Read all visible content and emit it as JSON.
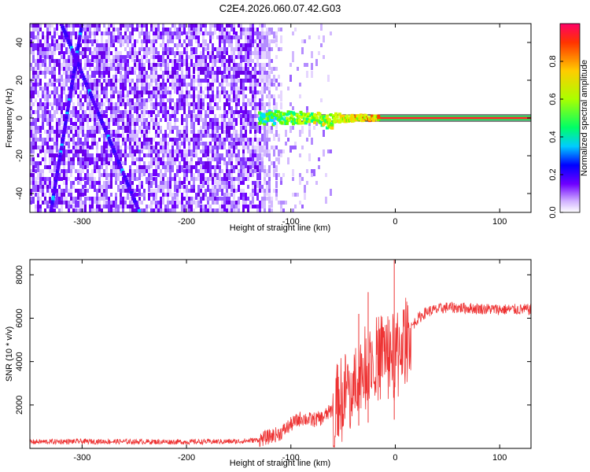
{
  "title": "C2E4.2026.060.07.42.G03",
  "chart_data": [
    {
      "type": "heatmap",
      "xlabel": "Height of straight line (km)",
      "ylabel": "Frequency (Hz)",
      "xlim": [
        -350,
        130
      ],
      "ylim": [
        -50,
        50
      ],
      "x_ticks": [
        -300,
        -200,
        -100,
        0,
        100
      ],
      "y_ticks": [
        -40,
        -20,
        0,
        20,
        40
      ],
      "colorbar": {
        "label": "Normalized spectral amplitude",
        "range": [
          0,
          1
        ],
        "ticks": [
          "0.0",
          "0.2",
          "0.4",
          "0.6",
          "0.8"
        ]
      },
      "features": {
        "carrier_frequency_hz": 0,
        "carrier_onset_km": -130,
        "diagonal_tracks": [
          {
            "x_start": -320,
            "y_start": 50,
            "x_end": -245,
            "y_end": -50
          },
          {
            "x_start": -300,
            "y_start": 50,
            "x_end": -330,
            "y_end": -50
          }
        ]
      }
    },
    {
      "type": "line",
      "xlabel": "Height of straight line (km)",
      "ylabel": "SNR (10 * v/v)",
      "xlim": [
        -350,
        130
      ],
      "ylim": [
        0,
        8700
      ],
      "x_ticks": [
        -300,
        -200,
        -100,
        0,
        100
      ],
      "y_ticks": [
        2000,
        4000,
        6000,
        8000
      ],
      "series": [
        {
          "color": "#ee3333",
          "x": [
            -350,
            -300,
            -200,
            -150,
            -130,
            -110,
            -100,
            -90,
            -80,
            -70,
            -60,
            -50,
            -40,
            -30,
            -20,
            -10,
            0,
            10,
            20,
            30,
            50,
            100,
            130
          ],
          "y": [
            300,
            320,
            300,
            320,
            400,
            700,
            1100,
            1400,
            1300,
            1400,
            1800,
            2600,
            3200,
            3800,
            4200,
            4700,
            4400,
            5200,
            5900,
            6300,
            6500,
            6400,
            6400
          ]
        }
      ],
      "spikes": [
        {
          "x": -1,
          "y": 8700
        },
        {
          "x": -26,
          "y": 7200
        },
        {
          "x": -35,
          "y": 6200
        }
      ]
    }
  ]
}
